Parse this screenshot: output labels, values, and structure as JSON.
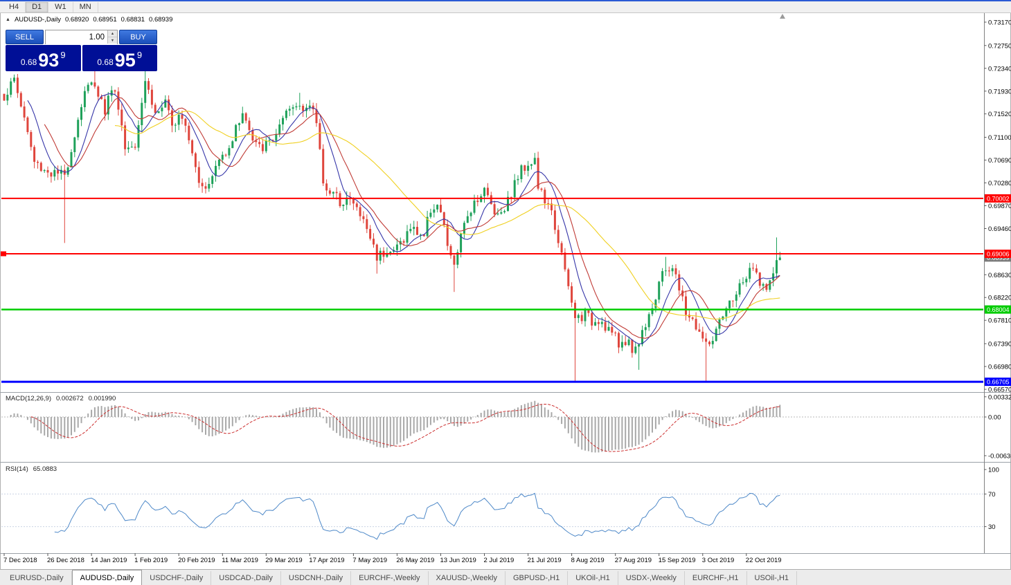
{
  "window": {
    "top_accent_color": "#2a5ad4"
  },
  "toolbar": {
    "timeframes": [
      {
        "label": "H4",
        "active": false
      },
      {
        "label": "D1",
        "active": true
      },
      {
        "label": "W1",
        "active": false
      },
      {
        "label": "MN",
        "active": false
      }
    ]
  },
  "chart_header": {
    "arrow_icon": "▲",
    "symbol": "AUDUSD-,Daily",
    "open": "0.68920",
    "high": "0.68951",
    "low": "0.68831",
    "close": "0.68939"
  },
  "trade_panel": {
    "sell_label": "SELL",
    "buy_label": "BUY",
    "volume": "1.00",
    "spinner_up_icon": "▲",
    "spinner_down_icon": "▼",
    "sell_price": {
      "prefix": "0.68",
      "big": "93",
      "sup": "9"
    },
    "buy_price": {
      "prefix": "0.68",
      "big": "95",
      "sup": "9"
    }
  },
  "indicators": {
    "macd": {
      "label": "MACD(12,26,9)",
      "value_main": "0.002672",
      "value_signal": "0.001990"
    },
    "rsi": {
      "label": "RSI(14)",
      "value": "65.0883"
    }
  },
  "chart_data": {
    "type": "candlestick",
    "symbol": "AUDUSD",
    "timeframe": "Daily",
    "title": "AUDUSD-,Daily",
    "current_bar": {
      "open": 0.6892,
      "high": 0.68951,
      "low": 0.68831,
      "close": 0.68939
    },
    "colors": {
      "bull": "#1fa15a",
      "bear": "#df453c",
      "ma_fast_blue": "#3535a8",
      "ma_mid_red": "#c03a35",
      "ma_slow_yellow": "#f0d020",
      "macd_hist": "#a8a8a8",
      "macd_signal": "#cc2f2f",
      "rsi": "#4d88c8",
      "level_red": "#ff0000",
      "level_green": "#00cc00",
      "level_blue": "#0000ff"
    },
    "moving_averages": [
      {
        "period": 8,
        "color": "#3535a8"
      },
      {
        "period": 13,
        "color": "#c03a35"
      },
      {
        "period": 34,
        "color": "#f0d020"
      }
    ],
    "levels": [
      {
        "label": "0.70002",
        "price": 0.70002,
        "color": "#ff0000",
        "width": 2,
        "left_marker": false
      },
      {
        "label": "0.69006",
        "price": 0.69006,
        "color": "#ff0000",
        "width": 2,
        "left_marker": true
      },
      {
        "label": "0.68004",
        "price": 0.68004,
        "color": "#00cc00",
        "width": 2.5,
        "left_marker": false
      },
      {
        "label": "0.66705",
        "price": 0.66705,
        "color": "#0000ff",
        "width": 3,
        "left_marker": false
      }
    ],
    "bid_marker": {
      "label": "0.68939",
      "price": 0.68939,
      "color": "#7a7a7a"
    },
    "price_axis_ticks": [
      {
        "label": "0.73170",
        "price": 0.7317
      },
      {
        "label": "0.72750",
        "price": 0.7275
      },
      {
        "label": "0.72340",
        "price": 0.7234
      },
      {
        "label": "0.71930",
        "price": 0.7193
      },
      {
        "label": "0.71520",
        "price": 0.7152
      },
      {
        "label": "0.71100",
        "price": 0.711
      },
      {
        "label": "0.70690",
        "price": 0.7069
      },
      {
        "label": "0.70280",
        "price": 0.7028
      },
      {
        "label": "0.69870",
        "price": 0.6987
      },
      {
        "label": "0.69460",
        "price": 0.6946
      },
      {
        "label": "0.68630",
        "price": 0.6863
      },
      {
        "label": "0.68220",
        "price": 0.6822
      },
      {
        "label": "0.67810",
        "price": 0.6781
      },
      {
        "label": "0.67390",
        "price": 0.6739
      },
      {
        "label": "0.66980",
        "price": 0.6698
      },
      {
        "label": "0.66570",
        "price": 0.6657
      }
    ],
    "macd_axis_ticks": [
      {
        "label": "0.00332",
        "value": 0.00332
      },
      {
        "label": "0.00",
        "value": 0
      },
      {
        "label": "-0.00636",
        "value": -0.00636
      }
    ],
    "rsi_axis_ticks": [
      {
        "label": "100",
        "value": 100
      },
      {
        "label": "70",
        "value": 70
      },
      {
        "label": "30",
        "value": 30
      }
    ],
    "rsi_levels": [
      70,
      30
    ],
    "time_axis": [
      {
        "label": "7 Dec 2018",
        "i": 0
      },
      {
        "label": "26 Dec 2018",
        "i": 13
      },
      {
        "label": "14 Jan 2019",
        "i": 26
      },
      {
        "label": "1 Feb 2019",
        "i": 39
      },
      {
        "label": "20 Feb 2019",
        "i": 52
      },
      {
        "label": "11 Mar 2019",
        "i": 65
      },
      {
        "label": "29 Mar 2019",
        "i": 78
      },
      {
        "label": "17 Apr 2019",
        "i": 91
      },
      {
        "label": "7 May 2019",
        "i": 104
      },
      {
        "label": "26 May 2019",
        "i": 117
      },
      {
        "label": "13 Jun 2019",
        "i": 130
      },
      {
        "label": "2 Jul 2019",
        "i": 143
      },
      {
        "label": "21 Jul 2019",
        "i": 156
      },
      {
        "label": "8 Aug 2019",
        "i": 169
      },
      {
        "label": "27 Aug 2019",
        "i": 182
      },
      {
        "label": "15 Sep 2019",
        "i": 195
      },
      {
        "label": "3 Oct 2019",
        "i": 208
      },
      {
        "label": "22 Oct 2019",
        "i": 221
      }
    ],
    "candle_count": 232,
    "close_anchors": [
      [
        0,
        0.7183
      ],
      [
        3,
        0.7214
      ],
      [
        6,
        0.7145
      ],
      [
        9,
        0.7065
      ],
      [
        12,
        0.7052
      ],
      [
        14,
        0.7046
      ],
      [
        17,
        0.7042
      ],
      [
        18,
        0.704
      ],
      [
        20,
        0.709
      ],
      [
        24,
        0.7195
      ],
      [
        27,
        0.7208
      ],
      [
        30,
        0.7158
      ],
      [
        32,
        0.7201
      ],
      [
        34,
        0.717
      ],
      [
        36,
        0.709
      ],
      [
        39,
        0.7102
      ],
      [
        42,
        0.7215
      ],
      [
        45,
        0.7152
      ],
      [
        48,
        0.717
      ],
      [
        50,
        0.7127
      ],
      [
        52,
        0.7158
      ],
      [
        54,
        0.7139
      ],
      [
        58,
        0.7034
      ],
      [
        61,
        0.7021
      ],
      [
        63,
        0.7058
      ],
      [
        65,
        0.7077
      ],
      [
        68,
        0.7108
      ],
      [
        71,
        0.7158
      ],
      [
        74,
        0.7102
      ],
      [
        76,
        0.709
      ],
      [
        78,
        0.7096
      ],
      [
        80,
        0.7108
      ],
      [
        82,
        0.7127
      ],
      [
        85,
        0.7158
      ],
      [
        88,
        0.717
      ],
      [
        91,
        0.7164
      ],
      [
        93,
        0.7139
      ],
      [
        95,
        0.7034
      ],
      [
        97,
        0.7009
      ],
      [
        100,
        0.6996
      ],
      [
        102,
        0.7002
      ],
      [
        104,
        0.699
      ],
      [
        106,
        0.6971
      ],
      [
        108,
        0.6946
      ],
      [
        111,
        0.6897
      ],
      [
        114,
        0.6909
      ],
      [
        116,
        0.6903
      ],
      [
        117,
        0.6915
      ],
      [
        119,
        0.6928
      ],
      [
        121,
        0.6946
      ],
      [
        125,
        0.6934
      ],
      [
        127,
        0.6983
      ],
      [
        129,
        0.699
      ],
      [
        130,
        0.6971
      ],
      [
        133,
        0.689
      ],
      [
        134,
        0.6884
      ],
      [
        136,
        0.6928
      ],
      [
        138,
        0.6971
      ],
      [
        140,
        0.6996
      ],
      [
        143,
        0.7015
      ],
      [
        145,
        0.699
      ],
      [
        147,
        0.6971
      ],
      [
        150,
        0.6996
      ],
      [
        152,
        0.7027
      ],
      [
        154,
        0.7052
      ],
      [
        156,
        0.7065
      ],
      [
        158,
        0.707
      ],
      [
        159,
        0.7021
      ],
      [
        161,
        0.6996
      ],
      [
        163,
        0.6971
      ],
      [
        165,
        0.6928
      ],
      [
        167,
        0.6866
      ],
      [
        169,
        0.681
      ],
      [
        170,
        0.6785
      ],
      [
        173,
        0.6791
      ],
      [
        175,
        0.6779
      ],
      [
        177,
        0.6785
      ],
      [
        179,
        0.6772
      ],
      [
        181,
        0.676
      ],
      [
        183,
        0.6735
      ],
      [
        185,
        0.6747
      ],
      [
        187,
        0.6729
      ],
      [
        189,
        0.6741
      ],
      [
        192,
        0.6797
      ],
      [
        194,
        0.6822
      ],
      [
        195,
        0.6847
      ],
      [
        197,
        0.6872
      ],
      [
        199,
        0.6878
      ],
      [
        201,
        0.6835
      ],
      [
        203,
        0.6797
      ],
      [
        205,
        0.6779
      ],
      [
        207,
        0.676
      ],
      [
        209,
        0.6735
      ],
      [
        211,
        0.6747
      ],
      [
        213,
        0.6772
      ],
      [
        215,
        0.6797
      ],
      [
        217,
        0.6822
      ],
      [
        219,
        0.684
      ],
      [
        221,
        0.6859
      ],
      [
        223,
        0.6872
      ],
      [
        225,
        0.6853
      ],
      [
        227,
        0.6835
      ],
      [
        229,
        0.6866
      ],
      [
        230,
        0.689
      ],
      [
        231,
        0.68939
      ]
    ],
    "wick_overrides": [
      {
        "i": 18,
        "low": 0.692
      },
      {
        "i": 27,
        "high": 0.7238
      },
      {
        "i": 42,
        "high": 0.7244
      },
      {
        "i": 88,
        "high": 0.719
      },
      {
        "i": 111,
        "low": 0.6865
      },
      {
        "i": 134,
        "low": 0.6832
      },
      {
        "i": 158,
        "high": 0.7082
      },
      {
        "i": 170,
        "low": 0.6672
      },
      {
        "i": 189,
        "low": 0.6692
      },
      {
        "i": 197,
        "high": 0.6895
      },
      {
        "i": 209,
        "low": 0.667
      },
      {
        "i": 230,
        "high": 0.693
      },
      {
        "i": 231,
        "high": 0.68951
      }
    ]
  },
  "tabs": [
    {
      "label": "EURUSD-,Daily",
      "active": false
    },
    {
      "label": "AUDUSD-,Daily",
      "active": true
    },
    {
      "label": "USDCHF-,Daily",
      "active": false
    },
    {
      "label": "USDCAD-,Daily",
      "active": false
    },
    {
      "label": "USDCNH-,Daily",
      "active": false
    },
    {
      "label": "EURCHF-,Weekly",
      "active": false
    },
    {
      "label": "XAUUSD-,Weekly",
      "active": false
    },
    {
      "label": "GBPUSD-,H1",
      "active": false
    },
    {
      "label": "UKOil-,H1",
      "active": false
    },
    {
      "label": "USDX-,Weekly",
      "active": false
    },
    {
      "label": "EURCHF-,H1",
      "active": false
    },
    {
      "label": "USOil-,H1",
      "active": false
    }
  ]
}
